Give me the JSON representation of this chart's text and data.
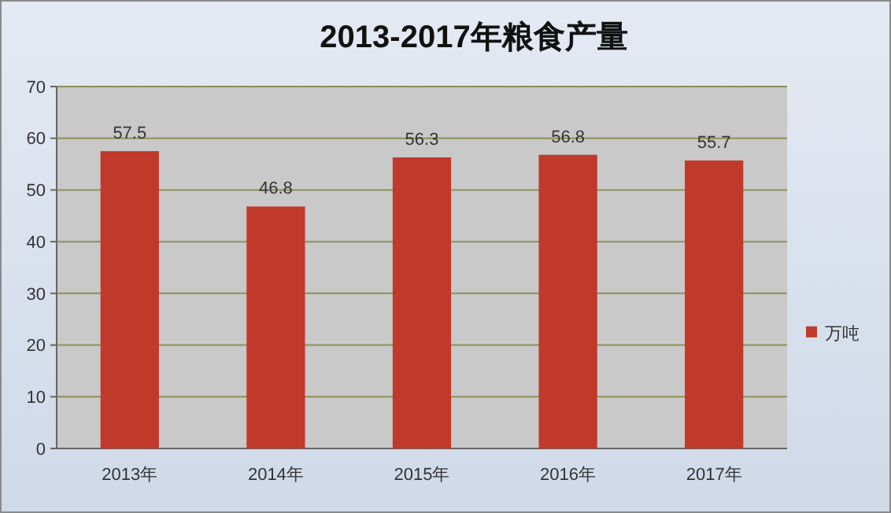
{
  "chart_data": {
    "type": "bar",
    "title": "2013-2017年粮食产量",
    "categories": [
      "2013年",
      "2014年",
      "2015年",
      "2016年",
      "2017年"
    ],
    "series": [
      {
        "name": "万吨",
        "color": "#c0392b",
        "values": [
          57.5,
          46.8,
          56.3,
          56.8,
          55.7
        ]
      }
    ],
    "ylim": [
      0,
      70
    ],
    "yticks": [
      0,
      10,
      20,
      30,
      40,
      50,
      60,
      70
    ],
    "grid": "y",
    "legend": "right",
    "data_labels": true
  }
}
